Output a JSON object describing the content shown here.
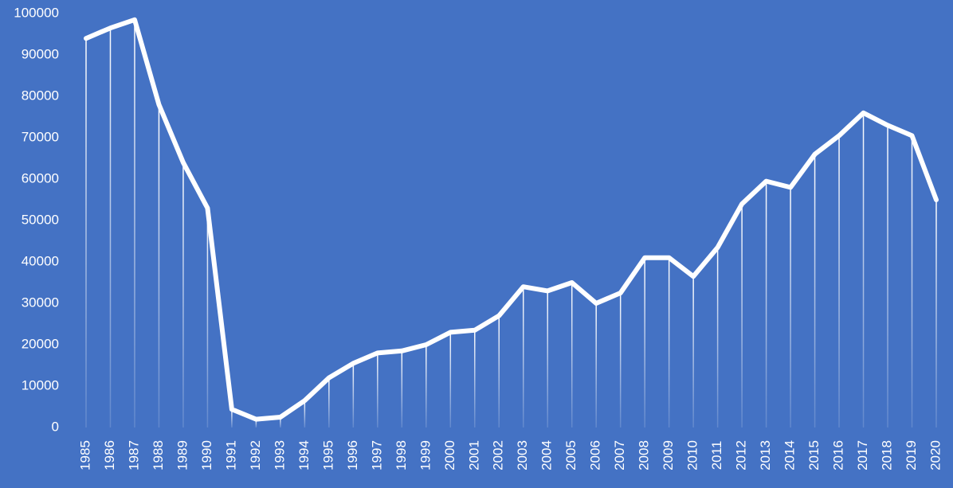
{
  "chart_data": {
    "type": "line",
    "categories": [
      "1985",
      "1986",
      "1987",
      "1988",
      "1989",
      "1990",
      "1991",
      "1992",
      "1993",
      "1994",
      "1995",
      "1996",
      "1997",
      "1998",
      "1999",
      "2000",
      "2001",
      "2002",
      "2003",
      "2004",
      "2005",
      "2006",
      "2007",
      "2008",
      "2009",
      "2010",
      "2011",
      "2012",
      "2013",
      "2014",
      "2015",
      "2016",
      "2017",
      "2018",
      "2019",
      "2020"
    ],
    "values": [
      94000,
      96500,
      98500,
      78000,
      64000,
      53000,
      4400,
      2000,
      2500,
      6500,
      12000,
      15500,
      18000,
      18500,
      20000,
      23000,
      23500,
      27000,
      34000,
      33000,
      35000,
      30000,
      32500,
      41000,
      41000,
      36500,
      43500,
      54000,
      59500,
      58000,
      66000,
      70500,
      76000,
      73000,
      70500,
      55000
    ],
    "color": "#ffffff",
    "background": "#4472c4",
    "drop_lines": true,
    "ylim": [
      0,
      100000
    ],
    "yticks": [
      0,
      10000,
      20000,
      30000,
      40000,
      50000,
      60000,
      70000,
      80000,
      90000,
      100000
    ]
  }
}
